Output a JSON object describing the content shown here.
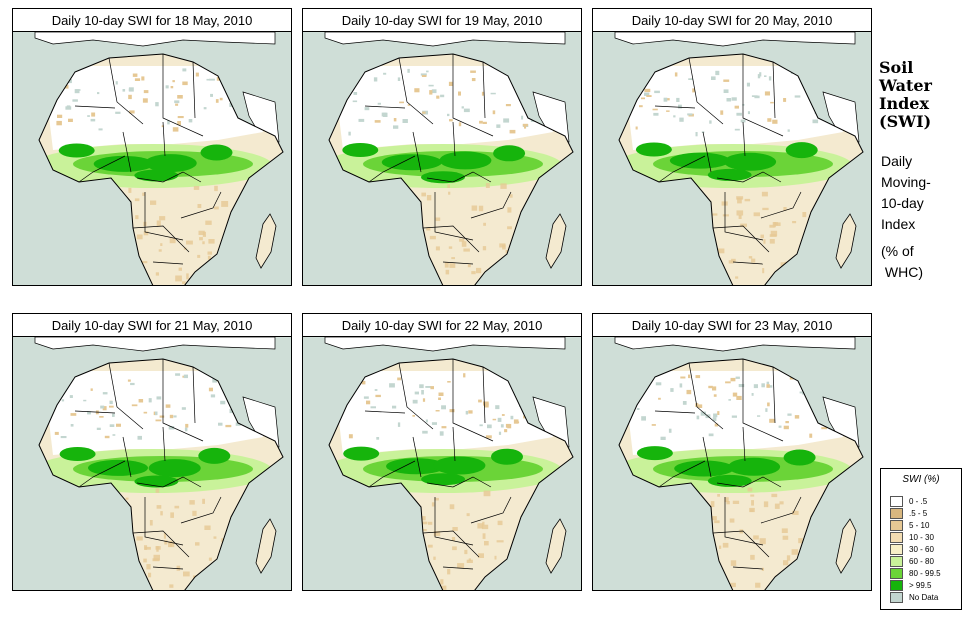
{
  "panels": [
    {
      "title": "Daily 10-day SWI for  18 May, 2010"
    },
    {
      "title": "Daily 10-day SWI for  19 May, 2010"
    },
    {
      "title": "Daily 10-day SWI for  20 May, 2010"
    },
    {
      "title": "Daily 10-day SWI for  21 May, 2010"
    },
    {
      "title": "Daily 10-day SWI for  22 May, 2010"
    },
    {
      "title": "Daily 10-day SWI for  23 May, 2010"
    }
  ],
  "side": {
    "title_lines": [
      "Soil",
      "Water",
      "Index",
      "(SWI)"
    ],
    "sub_lines": [
      "Daily",
      "Moving-",
      "10-day",
      "Index"
    ],
    "unit_lines": [
      "(% of",
      " WHC)"
    ]
  },
  "legend": {
    "title": "SWI (%)",
    "items": [
      {
        "label": "0 - .5",
        "color": "#ffffff"
      },
      {
        "label": ".5 - 5",
        "color": "#d8b77f"
      },
      {
        "label": "5 - 10",
        "color": "#e6c894"
      },
      {
        "label": "10 - 30",
        "color": "#f2dcb2"
      },
      {
        "label": "30 - 60",
        "color": "#f7efc7"
      },
      {
        "label": "60 - 80",
        "color": "#c9f29a"
      },
      {
        "label": "80 - 99.5",
        "color": "#6bd438"
      },
      {
        "label": "> 99.5",
        "color": "#16b40c"
      },
      {
        "label": "No Data",
        "color": "#c3d6d0"
      }
    ]
  },
  "colors": {
    "ocean": "#cfded7",
    "land": "#f4ead0",
    "desert": "#ffffff",
    "no_data": "#c3d6d0",
    "green": "#16b40c",
    "light_green": "#6bd438",
    "tan": "#e6c894"
  }
}
